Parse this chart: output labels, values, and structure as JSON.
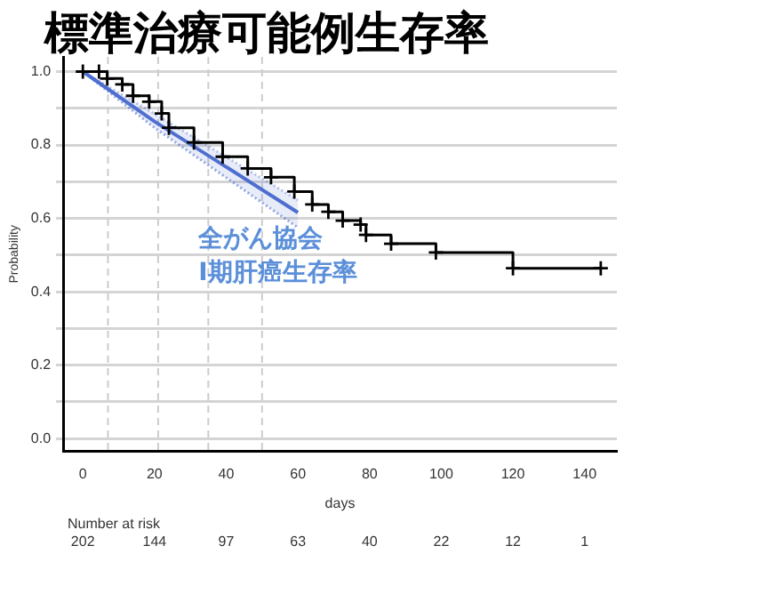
{
  "chart_data": {
    "type": "step",
    "title": "標準治療可能例生存率",
    "xlabel": "days",
    "ylabel": "Probability",
    "xlim": [
      -5.5,
      149
    ],
    "xticks": [
      0,
      20,
      40,
      60,
      80,
      100,
      120,
      140
    ],
    "ylim": [
      -0.035,
      1.04
    ],
    "yticks": [
      {
        "value": 0,
        "label": "0.0"
      },
      {
        "value": 0.1,
        "label": null
      },
      0.2,
      {
        "value": 0.3,
        "label": null
      },
      0.4,
      {
        "value": 0.5,
        "label": null
      },
      0.6,
      {
        "value": 0.7,
        "label": null
      },
      0.8,
      {
        "value": 0.9,
        "label": null
      },
      {
        "value": 1,
        "label": "1.0"
      }
    ],
    "grid": "y",
    "legend": false,
    "series": [
      {
        "marker": "cross",
        "color": "#000000",
        "x": [
          0,
          4.5,
          6.8,
          11,
          14,
          18.5,
          22,
          24,
          31,
          39,
          46,
          52.5,
          59,
          64,
          68.5,
          72.5,
          77.5,
          79,
          86,
          98.5,
          120,
          144.5
        ],
        "values": [
          1,
          1,
          0.981,
          0.965,
          0.934,
          0.918,
          0.886,
          0.847,
          0.807,
          0.768,
          0.736,
          0.712,
          0.673,
          0.638,
          0.618,
          0.594,
          0.583,
          0.555,
          0.531,
          0.507,
          0.464,
          0.464
        ]
      },
      {
        "type": "line",
        "name": "全がん協会 I期肝癌生存率",
        "color": "#4f6fd0",
        "x": [
          0,
          20,
          60
        ],
        "values": [
          1,
          0.864,
          0.616
        ],
        "lower": [
          1,
          0.847,
          0.575
        ],
        "upper": [
          1,
          0.885,
          0.65
        ]
      }
    ],
    "ref_lines": [
      {
        "axis": "x",
        "value": 7,
        "color": "#cccccc",
        "line_style": "dashed"
      },
      {
        "axis": "x",
        "value": 21,
        "color": "#cccccc",
        "line_style": "dashed"
      },
      {
        "axis": "x",
        "value": 35,
        "color": "#cccccc",
        "line_style": "dashed"
      },
      {
        "axis": "x",
        "value": 50,
        "color": "#cccccc",
        "line_style": "dashed"
      }
    ],
    "annotations": [
      "Number at risk",
      "202",
      "144",
      "97",
      "63",
      "40",
      "22",
      "12",
      "1"
    ]
  }
}
